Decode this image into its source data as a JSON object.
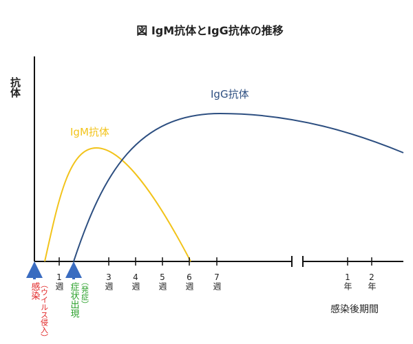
{
  "title": "図 IgM抗体とIgG抗体の推移",
  "y_label": "抗体",
  "curves": {
    "igg": "IgG抗体",
    "igm": "IgM抗体"
  },
  "ticks": [
    "1週",
    "3週",
    "4週",
    "5週",
    "6週",
    "7週",
    "1年",
    "2年"
  ],
  "events": {
    "infection": "感染",
    "infection_note": "（ウイルス侵入）",
    "onset": "症状出現",
    "onset_note": "（発症）"
  },
  "x_label": "感染後期間"
}
